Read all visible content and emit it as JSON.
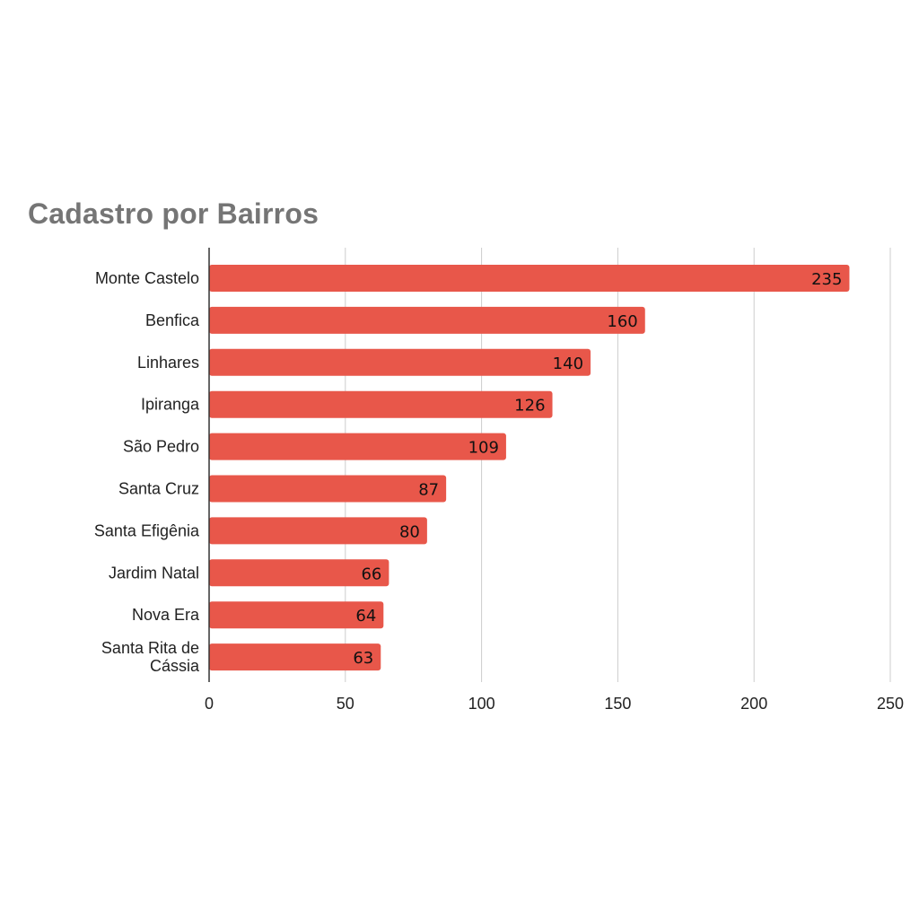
{
  "title": "Cadastro por Bairros",
  "colors": {
    "bar": "#E8574A",
    "grid": "#CCCCCC",
    "axis": "#333333",
    "title": "#757575"
  },
  "chart_data": {
    "type": "bar",
    "orientation": "horizontal",
    "title": "Cadastro por Bairros",
    "xlabel": "",
    "ylabel": "",
    "categories": [
      "Monte Castelo",
      "Benfica",
      "Linhares",
      "Ipiranga",
      "São Pedro",
      "Santa Cruz",
      "Santa Efigênia",
      "Jardim Natal",
      "Nova Era",
      "Santa Rita de Cássia"
    ],
    "category_lines": [
      [
        "Monte Castelo"
      ],
      [
        "Benfica"
      ],
      [
        "Linhares"
      ],
      [
        "Ipiranga"
      ],
      [
        "São Pedro"
      ],
      [
        "Santa Cruz"
      ],
      [
        "Santa Efigênia"
      ],
      [
        "Jardim Natal"
      ],
      [
        "Nova Era"
      ],
      [
        "Santa Rita de",
        "Cássia"
      ]
    ],
    "values": [
      235,
      160,
      140,
      126,
      109,
      87,
      80,
      66,
      64,
      63
    ],
    "xlim": [
      0,
      250
    ],
    "ticks": [
      0,
      50,
      100,
      150,
      200,
      250
    ],
    "grid": true,
    "data_labels": true
  }
}
